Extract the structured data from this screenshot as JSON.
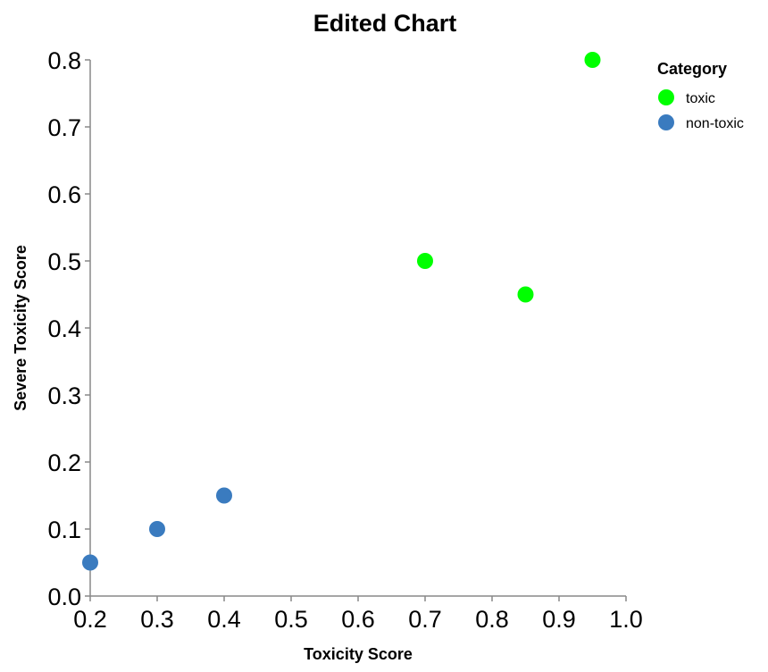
{
  "chart_data": {
    "type": "scatter",
    "title": "Edited Chart",
    "xlabel": "Toxicity Score",
    "ylabel": "Severe Toxicity Score",
    "xlim": [
      0.2,
      1.0
    ],
    "ylim": [
      0.0,
      0.8
    ],
    "xticks": [
      "0.2",
      "0.3",
      "0.4",
      "0.5",
      "0.6",
      "0.7",
      "0.8",
      "0.9",
      "1.0"
    ],
    "yticks": [
      "0.0",
      "0.1",
      "0.2",
      "0.3",
      "0.4",
      "0.5",
      "0.6",
      "0.7",
      "0.8"
    ],
    "grid": false,
    "legend": {
      "title": "Category",
      "placement": "top-right",
      "entries": [
        "toxic",
        "non-toxic"
      ]
    },
    "series": [
      {
        "name": "toxic",
        "color": "#00ff00",
        "points": [
          {
            "x": 0.95,
            "y": 0.8
          },
          {
            "x": 0.7,
            "y": 0.5
          },
          {
            "x": 0.85,
            "y": 0.45
          }
        ]
      },
      {
        "name": "non-toxic",
        "color": "#3a7bbf",
        "points": [
          {
            "x": 0.2,
            "y": 0.05
          },
          {
            "x": 0.3,
            "y": 0.1
          },
          {
            "x": 0.4,
            "y": 0.15
          }
        ]
      }
    ]
  }
}
